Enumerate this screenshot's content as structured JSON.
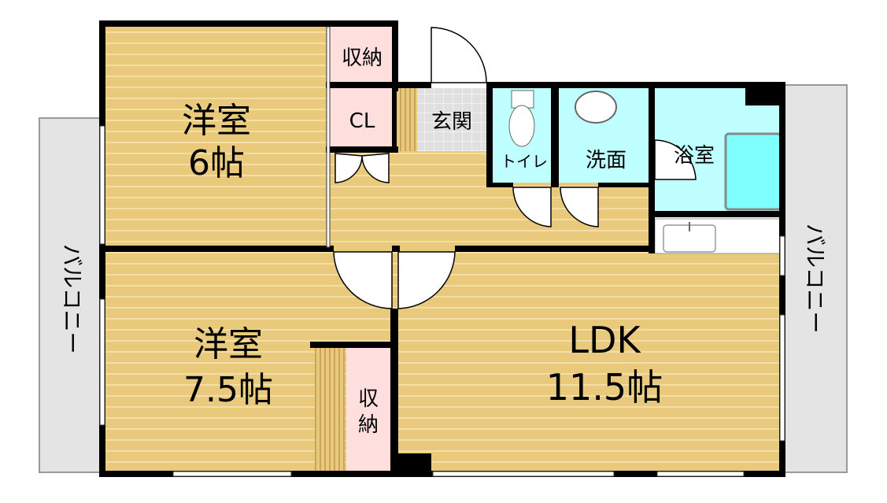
{
  "rooms": {
    "western_room_1": {
      "name": "洋室",
      "size": "6帖"
    },
    "western_room_2": {
      "name": "洋室",
      "size": "7.5帖"
    },
    "ldk": {
      "name": "LDK",
      "size": "11.5帖"
    },
    "storage_top": "収納",
    "storage_bottom_line1": "収",
    "storage_bottom_line2": "納",
    "closet": "CL",
    "entrance": "玄関",
    "toilet": "トイレ",
    "washroom": "洗面",
    "bathroom": "浴室",
    "balcony_left": "バルコニー",
    "balcony_right": "バルコニー"
  },
  "colors": {
    "wood_floor": "#e9c97b",
    "storage": "#ffdede",
    "wet_area": "#c0ffff",
    "bathtub": "#80ffff",
    "entrance_tile": "#e0e0e0",
    "balcony": "#e4e4e4",
    "wall": "#000000"
  }
}
